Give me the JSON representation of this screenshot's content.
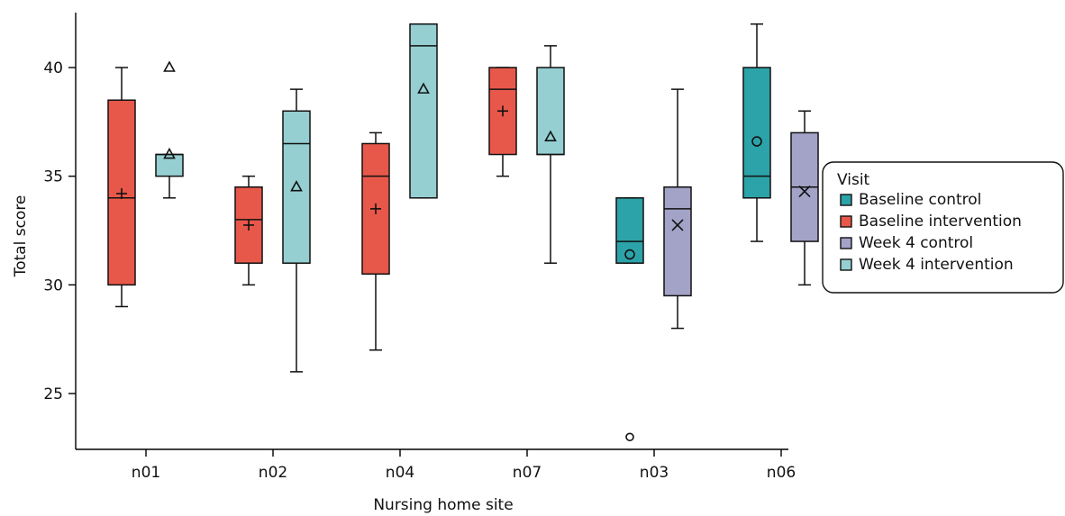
{
  "chart_data": {
    "type": "box",
    "xlabel": "Nursing home site",
    "ylabel": "Total score",
    "ylim": [
      22.5,
      42.7
    ],
    "yticks": [
      25,
      30,
      35,
      40
    ],
    "categories": [
      "n01",
      "n02",
      "n04",
      "n07",
      "n03",
      "n06"
    ],
    "legend": {
      "title": "Visit",
      "position": "right",
      "items": [
        "Baseline control",
        "Baseline intervention",
        "Week 4 control",
        "Week 4 intervention"
      ]
    },
    "series_colors": {
      "Baseline control": "#2ca3a8",
      "Baseline intervention": "#e8584a",
      "Week 4 control": "#a3a2c7",
      "Week 4 intervention": "#95cfd1"
    },
    "mean_markers": {
      "Baseline control": "circle",
      "Baseline intervention": "plus",
      "Week 4 control": "cross",
      "Week 4 intervention": "triangle"
    },
    "boxes": [
      {
        "category": "n01",
        "series": "Baseline intervention",
        "slot": 0,
        "min": 29,
        "q1": 30,
        "median": 34,
        "q3": 38.5,
        "max": 40,
        "mean": 34.2,
        "outliers": []
      },
      {
        "category": "n01",
        "series": "Week 4 intervention",
        "slot": 1,
        "min": 34,
        "q1": 35,
        "median": 36,
        "q3": 36,
        "max": 36,
        "mean": 36,
        "outliers": [
          40
        ]
      },
      {
        "category": "n02",
        "series": "Baseline intervention",
        "slot": 0,
        "min": 30,
        "q1": 31,
        "median": 33,
        "q3": 34.5,
        "max": 35,
        "mean": 32.75,
        "outliers": []
      },
      {
        "category": "n02",
        "series": "Week 4 intervention",
        "slot": 1,
        "min": 26,
        "q1": 31,
        "median": 36.5,
        "q3": 38,
        "max": 39,
        "mean": 34.5,
        "outliers": []
      },
      {
        "category": "n04",
        "series": "Baseline intervention",
        "slot": 0,
        "min": 27,
        "q1": 30.5,
        "median": 35,
        "q3": 36.5,
        "max": 37,
        "mean": 33.5,
        "outliers": []
      },
      {
        "category": "n04",
        "series": "Week 4 intervention",
        "slot": 1,
        "min": 34,
        "q1": 34,
        "median": 41,
        "q3": 42,
        "max": 42,
        "mean": 39,
        "outliers": []
      },
      {
        "category": "n07",
        "series": "Baseline intervention",
        "slot": 0,
        "min": 35,
        "q1": 36,
        "median": 39,
        "q3": 40,
        "max": 40,
        "mean": 38,
        "outliers": []
      },
      {
        "category": "n07",
        "series": "Week 4 intervention",
        "slot": 1,
        "min": 31,
        "q1": 36,
        "median": 36,
        "q3": 40,
        "max": 41,
        "mean": 36.8,
        "outliers": []
      },
      {
        "category": "n03",
        "series": "Baseline control",
        "slot": 0,
        "min": 31,
        "q1": 31,
        "median": 32,
        "q3": 34,
        "max": 34,
        "mean": 31.4,
        "outliers": [
          23
        ]
      },
      {
        "category": "n03",
        "series": "Week 4 control",
        "slot": 1,
        "min": 28,
        "q1": 29.5,
        "median": 33.5,
        "q3": 34.5,
        "max": 39,
        "mean": 32.75,
        "outliers": []
      },
      {
        "category": "n06",
        "series": "Baseline control",
        "slot": 0,
        "min": 32,
        "q1": 34,
        "median": 35,
        "q3": 40,
        "max": 42,
        "mean": 36.6,
        "outliers": []
      },
      {
        "category": "n06",
        "series": "Week 4 control",
        "slot": 1,
        "min": 30,
        "q1": 32,
        "median": 34.5,
        "q3": 37,
        "max": 38,
        "mean": 34.3,
        "outliers": []
      }
    ]
  }
}
